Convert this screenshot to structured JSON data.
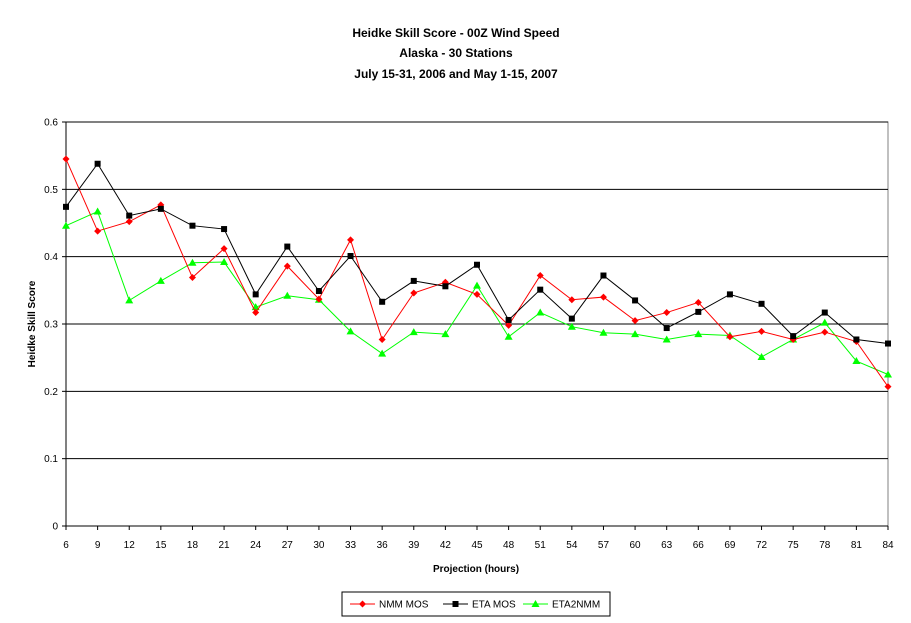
{
  "chart_data": {
    "type": "line",
    "title": [
      "Heidke Skill Score - 00Z Wind Speed",
      "Alaska - 30 Stations",
      "July 15-31, 2006 and May 1-15, 2007"
    ],
    "xlabel": "Projection (hours)",
    "ylabel": "Heidke Skill Score",
    "ylim": [
      0,
      0.6
    ],
    "yticks": [
      "0",
      "0.1",
      "0.2",
      "0.3",
      "0.4",
      "0.5",
      "0.6"
    ],
    "categories": [
      "6",
      "9",
      "12",
      "15",
      "18",
      "21",
      "24",
      "27",
      "30",
      "33",
      "36",
      "39",
      "42",
      "45",
      "48",
      "51",
      "54",
      "57",
      "60",
      "63",
      "66",
      "69",
      "72",
      "75",
      "78",
      "81",
      "84"
    ],
    "grid": "horizontal",
    "legend_position": "bottom",
    "series": [
      {
        "name": "NMM MOS",
        "color": "#ff0000",
        "marker": "diamond",
        "values": [
          0.545,
          0.438,
          0.452,
          0.477,
          0.369,
          0.412,
          0.317,
          0.386,
          0.337,
          0.425,
          0.277,
          0.346,
          0.362,
          0.344,
          0.298,
          0.372,
          0.336,
          0.34,
          0.305,
          0.317,
          0.332,
          0.281,
          0.289,
          0.277,
          0.288,
          0.274,
          0.207
        ]
      },
      {
        "name": "ETA MOS",
        "color": "#000000",
        "marker": "square",
        "values": [
          0.474,
          0.538,
          0.461,
          0.471,
          0.446,
          0.441,
          0.344,
          0.415,
          0.349,
          0.401,
          0.333,
          0.364,
          0.356,
          0.388,
          0.306,
          0.351,
          0.308,
          0.372,
          0.335,
          0.294,
          0.318,
          0.344,
          0.33,
          0.282,
          0.317,
          0.277,
          0.271
        ]
      },
      {
        "name": "ETA2NMM",
        "color": "#00ff00",
        "marker": "triangle",
        "values": [
          0.446,
          0.467,
          0.335,
          0.364,
          0.391,
          0.392,
          0.325,
          0.342,
          0.336,
          0.289,
          0.256,
          0.288,
          0.285,
          0.357,
          0.281,
          0.317,
          0.296,
          0.287,
          0.285,
          0.277,
          0.285,
          0.283,
          0.251,
          0.277,
          0.302,
          0.245,
          0.225
        ]
      }
    ]
  }
}
